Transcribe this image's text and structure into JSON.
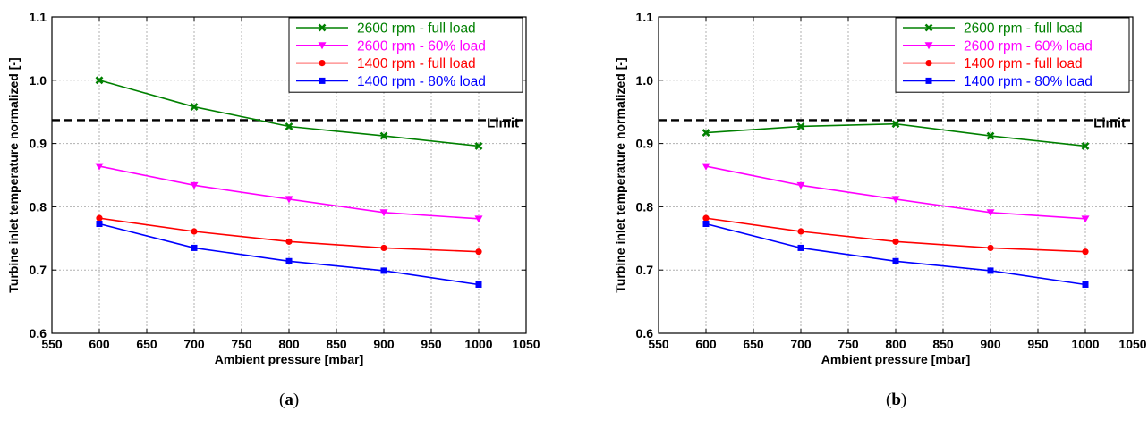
{
  "chart_data": [
    {
      "type": "line",
      "caption": {
        "open": "(",
        "letter": "a",
        "close": ")"
      },
      "xlabel": "Ambient pressure [mbar]",
      "ylabel": "Turbine inlet temperature normalized [-]",
      "xlim": [
        550,
        1050
      ],
      "ylim": [
        0.6,
        1.1
      ],
      "xticks": [
        "550",
        "600",
        "650",
        "700",
        "750",
        "800",
        "850",
        "900",
        "950",
        "1000",
        "1050"
      ],
      "yticks": [
        "0.6",
        "0.7",
        "0.8",
        "0.9",
        "1.0",
        "1.1"
      ],
      "grid": true,
      "legend_position": "top-right",
      "limit": {
        "label": "Limit",
        "value": 0.937
      },
      "x": [
        600,
        700,
        800,
        900,
        1000
      ],
      "series": [
        {
          "name": "2600 rpm - full load",
          "color": "#008000",
          "marker": "x",
          "values": [
            1.0,
            0.958,
            0.927,
            0.912,
            0.896
          ]
        },
        {
          "name": "2600 rpm - 60% load",
          "color": "#ff00ff",
          "marker": "triangle-down",
          "values": [
            0.864,
            0.834,
            0.812,
            0.791,
            0.781
          ]
        },
        {
          "name": "1400 rpm - full load",
          "color": "#ff0000",
          "marker": "circle",
          "values": [
            0.782,
            0.761,
            0.745,
            0.735,
            0.729
          ]
        },
        {
          "name": "1400 rpm - 80% load",
          "color": "#0000ff",
          "marker": "square",
          "values": [
            0.773,
            0.735,
            0.714,
            0.699,
            0.677
          ]
        }
      ]
    },
    {
      "type": "line",
      "caption": {
        "open": "(",
        "letter": "b",
        "close": ")"
      },
      "xlabel": "Ambient pressure [mbar]",
      "ylabel": "Turbine inlet temperature normalized [-]",
      "xlim": [
        550,
        1050
      ],
      "ylim": [
        0.6,
        1.1
      ],
      "xticks": [
        "550",
        "600",
        "650",
        "700",
        "750",
        "800",
        "850",
        "900",
        "950",
        "1000",
        "1050"
      ],
      "yticks": [
        "0.6",
        "0.7",
        "0.8",
        "0.9",
        "1.0",
        "1.1"
      ],
      "grid": true,
      "legend_position": "top-right",
      "limit": {
        "label": "Limit",
        "value": 0.937
      },
      "x": [
        600,
        700,
        800,
        900,
        1000
      ],
      "series": [
        {
          "name": "2600 rpm - full load",
          "color": "#008000",
          "marker": "x",
          "values": [
            0.917,
            0.927,
            0.931,
            0.912,
            0.896
          ]
        },
        {
          "name": "2600 rpm - 60% load",
          "color": "#ff00ff",
          "marker": "triangle-down",
          "values": [
            0.864,
            0.834,
            0.812,
            0.791,
            0.781
          ]
        },
        {
          "name": "1400 rpm - full load",
          "color": "#ff0000",
          "marker": "circle",
          "values": [
            0.782,
            0.761,
            0.745,
            0.735,
            0.729
          ]
        },
        {
          "name": "1400 rpm - 80% load",
          "color": "#0000ff",
          "marker": "square",
          "values": [
            0.773,
            0.735,
            0.714,
            0.699,
            0.677
          ]
        }
      ]
    }
  ]
}
